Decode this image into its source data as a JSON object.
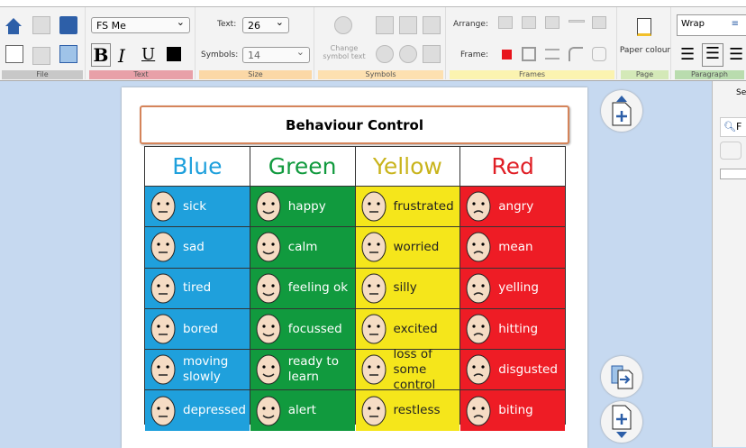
{
  "ribbon": {
    "groups": {
      "file": "File",
      "text": "Text",
      "size": "Size",
      "symbols": "Symbols",
      "frames": "Frames",
      "page": "Page",
      "paragraph": "Paragraph"
    },
    "font": "FS Me",
    "bold": "B",
    "italic": "I",
    "underline": "U",
    "text_label": "Text:",
    "text_size": "26",
    "symbols_label": "Symbols:",
    "symbols_size": "14",
    "change_symbol_text": "Change symbol text",
    "arrange_label": "Arrange:",
    "frame_label": "Frame:",
    "paper_colour": "Paper colour",
    "wrap": "Wrap",
    "frame_color": "#e8141c"
  },
  "side_panel": {
    "title": "Se",
    "search": "F"
  },
  "document": {
    "title": "Behaviour Control",
    "columns": [
      {
        "name": "Blue",
        "color": "#1fa0dc",
        "items": [
          "sick",
          "sad",
          "tired",
          "bored",
          "moving slowly",
          "depressed"
        ]
      },
      {
        "name": "Green",
        "color": "#119a3e",
        "items": [
          "happy",
          "calm",
          "feeling ok",
          "focussed",
          "ready to learn",
          "alert"
        ]
      },
      {
        "name": "Yellow",
        "color": "#c9b41c",
        "items": [
          "frustrated",
          "worried",
          "silly",
          "excited",
          "loss of some control",
          "restless"
        ]
      },
      {
        "name": "Red",
        "color": "#e01f26",
        "items": [
          "angry",
          "mean",
          "yelling",
          "hitting",
          "disgusted",
          "biting"
        ]
      }
    ]
  }
}
